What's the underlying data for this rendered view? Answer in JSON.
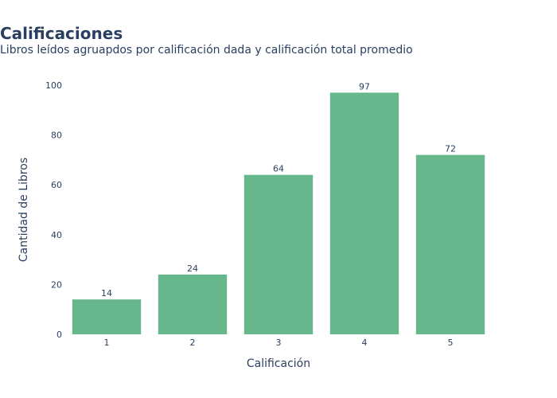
{
  "header": {
    "title": "Calificaciones",
    "subtitle": "Libros leídos agruapdos por calificación dada y calificación total promedio"
  },
  "colors": {
    "bar": "#66b88c",
    "text": "#2a3f5f"
  },
  "chart_data": {
    "type": "bar",
    "title": "Calificaciones",
    "subtitle": "Libros leídos agruapdos por calificación dada y calificación total promedio",
    "xlabel": "Calificación",
    "ylabel": "Cantidad de Libros",
    "categories": [
      "1",
      "2",
      "3",
      "4",
      "5"
    ],
    "values": [
      14,
      24,
      64,
      97,
      72
    ],
    "data_labels": [
      "14",
      "24",
      "64",
      "97",
      "72"
    ],
    "ylim": [
      0,
      100
    ],
    "yticks": [
      0,
      20,
      40,
      60,
      80,
      100
    ],
    "ytick_labels": [
      "0",
      "20",
      "40",
      "60",
      "80",
      "100"
    ],
    "grid": false,
    "legend": "none"
  }
}
